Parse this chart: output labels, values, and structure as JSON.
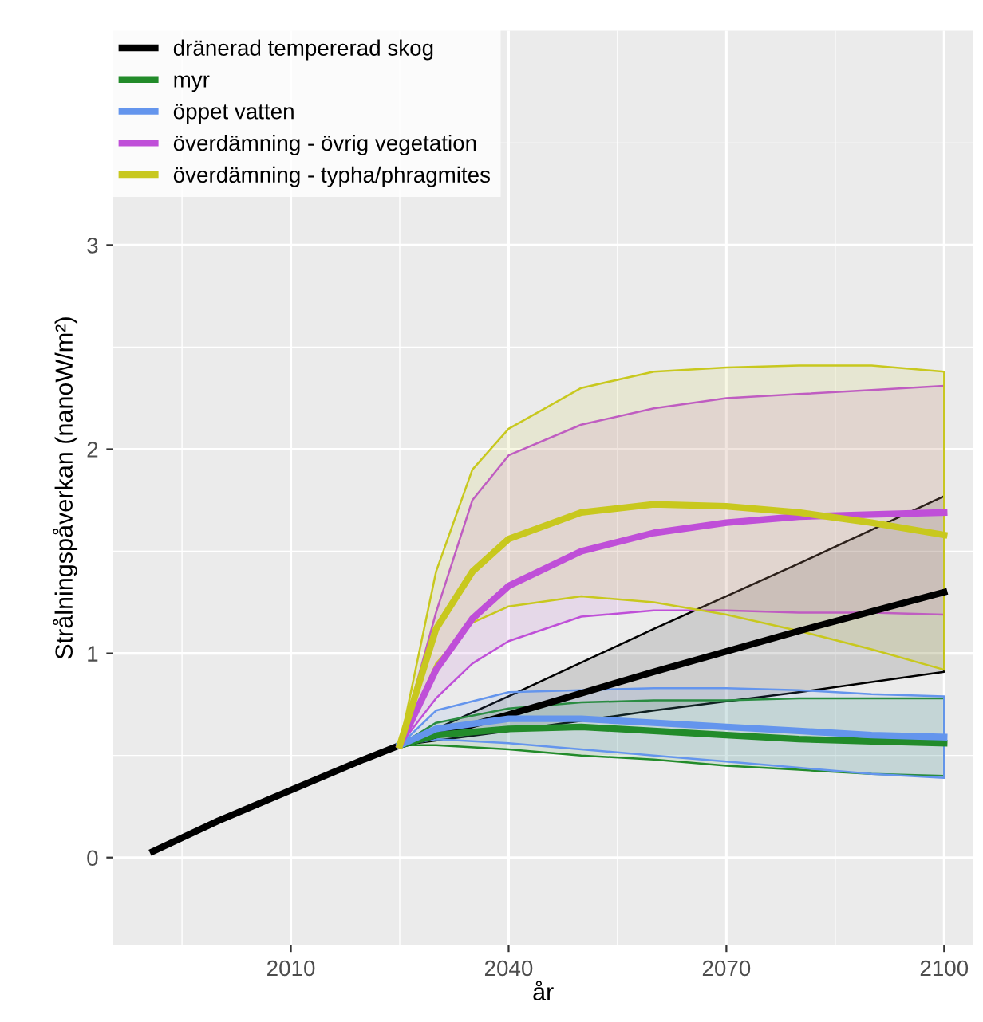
{
  "chart_data": {
    "type": "line",
    "xlabel": "år",
    "ylabel": "Strålningspåverkan (nanoW/m²)",
    "xlim": [
      1985.5,
      2104
    ],
    "ylim": [
      -0.43,
      4.05
    ],
    "xticks": [
      2010,
      2040,
      2070,
      2100
    ],
    "yticks": [
      0,
      1,
      2,
      3
    ],
    "grid": true,
    "legend": "top left",
    "line_style": "solid",
    "marker": "none",
    "series": [
      {
        "name": "dränerad tempererad skog",
        "color": "#000000",
        "x": [
          1991,
          2000,
          2010,
          2020,
          2025,
          2040,
          2060,
          2080,
          2100
        ],
        "values": [
          0.03,
          0.18,
          0.33,
          0.48,
          0.55,
          0.7,
          0.91,
          1.11,
          1.3
        ],
        "lower": [
          null,
          null,
          null,
          null,
          0.55,
          0.62,
          0.72,
          0.81,
          0.91
        ],
        "upper": [
          null,
          null,
          null,
          null,
          0.55,
          0.79,
          1.12,
          1.44,
          1.77
        ]
      },
      {
        "name": "myr",
        "color": "#228b2a",
        "x": [
          2025,
          2030,
          2040,
          2050,
          2060,
          2070,
          2080,
          2090,
          2100
        ],
        "values": [
          0.55,
          0.6,
          0.63,
          0.64,
          0.62,
          0.6,
          0.58,
          0.57,
          0.56
        ],
        "lower": [
          0.55,
          0.55,
          0.53,
          0.5,
          0.48,
          0.45,
          0.43,
          0.41,
          0.4
        ],
        "upper": [
          0.55,
          0.66,
          0.73,
          0.76,
          0.77,
          0.77,
          0.78,
          0.78,
          0.78
        ]
      },
      {
        "name": "öppet vatten",
        "color": "#6495ed",
        "x": [
          2025,
          2030,
          2040,
          2050,
          2060,
          2070,
          2080,
          2090,
          2100
        ],
        "values": [
          0.55,
          0.63,
          0.68,
          0.68,
          0.66,
          0.64,
          0.62,
          0.6,
          0.59
        ],
        "lower": [
          0.55,
          0.58,
          0.56,
          0.53,
          0.5,
          0.47,
          0.44,
          0.41,
          0.39
        ],
        "upper": [
          0.55,
          0.72,
          0.81,
          0.82,
          0.83,
          0.83,
          0.82,
          0.8,
          0.79
        ]
      },
      {
        "name": "överdämning - övrig vegetation",
        "color": "#bf4fd8",
        "x": [
          2025,
          2030,
          2035,
          2040,
          2050,
          2060,
          2070,
          2080,
          2090,
          2100
        ],
        "values": [
          0.55,
          0.92,
          1.17,
          1.33,
          1.5,
          1.59,
          1.64,
          1.67,
          1.68,
          1.69
        ],
        "lower": [
          0.55,
          0.78,
          0.95,
          1.06,
          1.18,
          1.21,
          1.21,
          1.2,
          1.2,
          1.19
        ],
        "upper": [
          0.55,
          1.2,
          1.75,
          1.97,
          2.12,
          2.2,
          2.25,
          2.27,
          2.29,
          2.31
        ]
      },
      {
        "name": "överdämning - typha/phragmites",
        "color": "#c8c81e",
        "x": [
          2025,
          2030,
          2035,
          2040,
          2050,
          2060,
          2070,
          2080,
          2090,
          2100
        ],
        "values": [
          0.55,
          1.12,
          1.4,
          1.56,
          1.69,
          1.73,
          1.72,
          1.69,
          1.64,
          1.58
        ],
        "lower": [
          0.55,
          0.95,
          1.15,
          1.23,
          1.28,
          1.25,
          1.19,
          1.11,
          1.02,
          0.92
        ],
        "upper": [
          0.55,
          1.4,
          1.9,
          2.1,
          2.3,
          2.38,
          2.4,
          2.41,
          2.41,
          2.38
        ]
      }
    ]
  }
}
